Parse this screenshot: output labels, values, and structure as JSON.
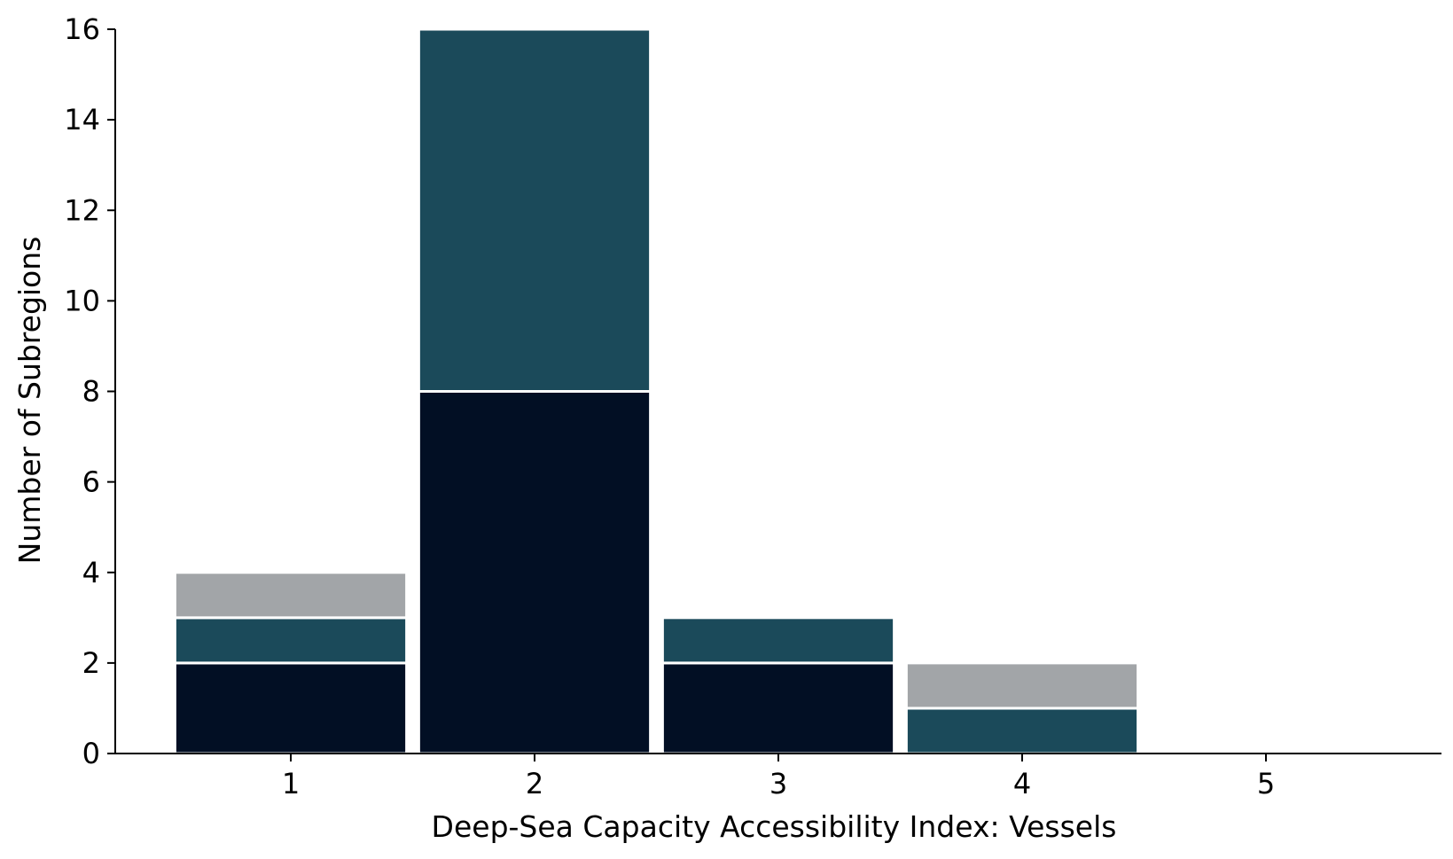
{
  "chart_data": {
    "type": "bar",
    "stacked": true,
    "title": "",
    "xlabel": "Deep-Sea Capacity Accessibility Index: Vessels",
    "ylabel": "Number of Subregions",
    "categories": [
      "1",
      "2",
      "3",
      "4",
      "5"
    ],
    "xlim": [
      0.28,
      5.72
    ],
    "ylim": [
      0,
      16
    ],
    "yticks": [
      "0",
      "2",
      "4",
      "6",
      "8",
      "10",
      "12",
      "14",
      "16"
    ],
    "grid": false,
    "series": [
      {
        "color": "#020f24",
        "values": [
          2,
          8,
          2,
          0,
          0
        ]
      },
      {
        "color": "#1b4a5a",
        "values": [
          1,
          8,
          1,
          1,
          0
        ]
      },
      {
        "color": "#a2a5a8",
        "values": [
          1,
          0,
          0,
          1,
          0
        ]
      }
    ]
  }
}
